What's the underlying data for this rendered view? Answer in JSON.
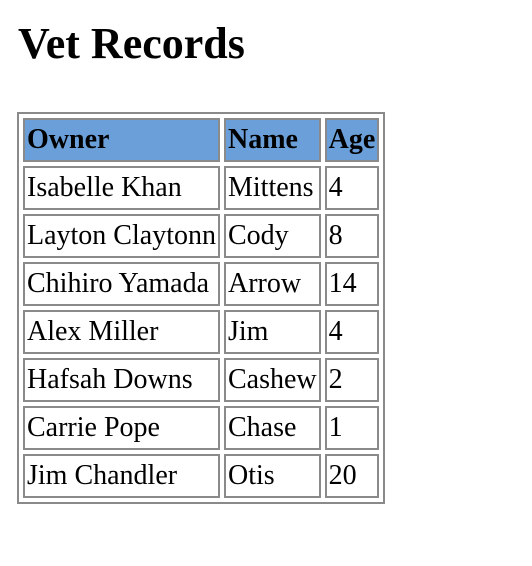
{
  "page": {
    "title": "Vet Records"
  },
  "table": {
    "columns": [
      "Owner",
      "Name",
      "Age"
    ],
    "rows": [
      [
        "Isabelle Khan",
        "Mittens",
        "4"
      ],
      [
        "Layton Claytonn",
        "Cody",
        "8"
      ],
      [
        "Chihiro Yamada",
        "Arrow",
        "14"
      ],
      [
        "Alex Miller",
        "Jim",
        "4"
      ],
      [
        "Hafsah Downs",
        "Cashew",
        "2"
      ],
      [
        "Carrie Pope",
        "Chase",
        "1"
      ],
      [
        "Jim Chandler",
        "Otis",
        "20"
      ]
    ]
  },
  "colors": {
    "header_bg": "#6a9fd9",
    "border": "#8a8a8a"
  }
}
